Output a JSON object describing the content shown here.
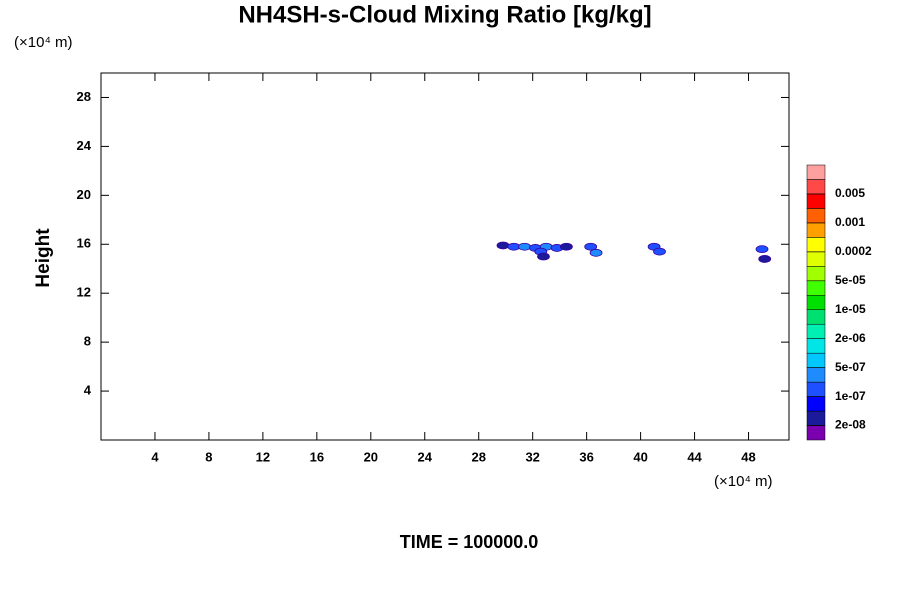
{
  "chart_data": {
    "type": "contour",
    "title": "NH4SH-s-Cloud Mixing Ratio [kg/kg]",
    "y_unit": "(×10⁴ m)",
    "x_unit": "(×10⁴ m)",
    "ylabel": "Height",
    "footer": "TIME = 100000.0",
    "xlim": [
      0,
      51
    ],
    "ylim": [
      0,
      30
    ],
    "xticks": [
      4,
      8,
      12,
      16,
      20,
      24,
      28,
      32,
      36,
      40,
      44,
      48
    ],
    "yticks": [
      4,
      8,
      12,
      16,
      20,
      24,
      28
    ],
    "x": [
      29.8,
      30.6,
      31.4,
      32.2,
      33.0,
      33.8,
      34.5,
      32.6,
      32.8,
      36.3,
      36.7,
      41.0,
      41.4,
      49.0,
      49.2
    ],
    "y": [
      15.9,
      15.8,
      15.8,
      15.7,
      15.8,
      15.7,
      15.8,
      15.4,
      15.0,
      15.8,
      15.3,
      15.8,
      15.4,
      15.6,
      14.8
    ],
    "values": [
      2e-08,
      1e-07,
      3e-07,
      2e-07,
      3e-07,
      1e-07,
      2e-08,
      2e-07,
      2e-08,
      1e-07,
      3e-07,
      1e-07,
      2e-07,
      2e-07,
      2e-08
    ],
    "colorbar": {
      "colors": [
        "#7a00b0",
        "#1a1a9a",
        "#0000ff",
        "#1e50ff",
        "#1e8cff",
        "#00c8ff",
        "#00e6e6",
        "#00f0b4",
        "#00e070",
        "#00e000",
        "#40ff00",
        "#a0ff00",
        "#e0ff00",
        "#ffff00",
        "#ffa000",
        "#ff6000",
        "#ff0000",
        "#ff4848",
        "#ffa0a0"
      ],
      "ticks": [
        {
          "value": 2e-08,
          "label": "2e-08"
        },
        {
          "value": 1e-07,
          "label": "1e-07"
        },
        {
          "value": 5e-07,
          "label": "5e-07"
        },
        {
          "value": 2e-06,
          "label": "2e-06"
        },
        {
          "value": 1e-05,
          "label": "1e-05"
        },
        {
          "value": 5e-05,
          "label": "5e-05"
        },
        0.0002,
        0.001,
        0.005
      ]
    }
  }
}
